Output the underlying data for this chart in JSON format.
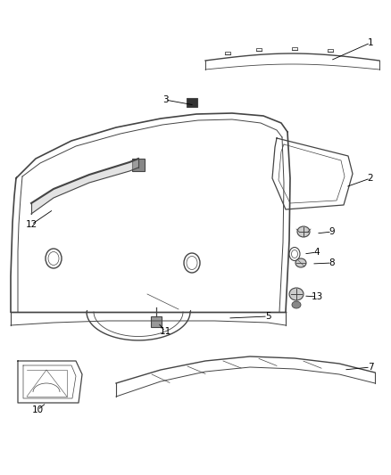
{
  "background_color": "#ffffff",
  "line_color": "#444444",
  "label_color": "#000000",
  "fig_width": 4.38,
  "fig_height": 5.33,
  "dpi": 100
}
